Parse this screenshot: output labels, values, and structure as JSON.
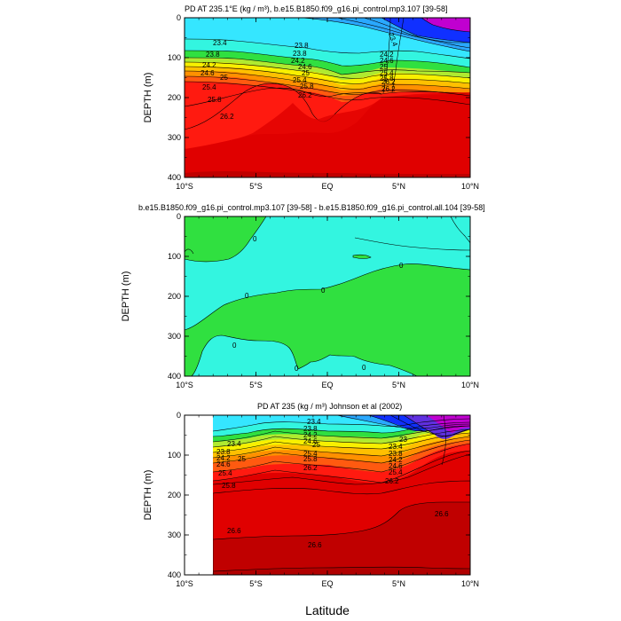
{
  "chart_data": [
    {
      "type": "heatmap",
      "subtype": "filled-contour",
      "title": "PD AT 235.1°E (kg / m³), b.e15.B1850.f09_g16.pi_control.mp3.107 [39-58]",
      "xlabel": "",
      "ylabel": "DEPTH (m)",
      "xlim": [
        -10,
        10
      ],
      "ylim": [
        400,
        0
      ],
      "x_ticks": [
        "10°S",
        "5°S",
        "EQ",
        "5°N",
        "10°N"
      ],
      "y_ticks": [
        "0",
        "100",
        "200",
        "300",
        "400"
      ],
      "contour_labels": [
        "23.4",
        "23.8",
        "23.8",
        "24.2",
        "24.6",
        "25",
        "25.4",
        "25.8",
        "26.2",
        "23.8",
        "24.2",
        "24.6",
        "25",
        "25.4",
        "25.8",
        "26.2",
        "26.2",
        "23.4",
        "24.2",
        "24.6",
        "25",
        "25.4",
        "25.8",
        "26.2"
      ]
    },
    {
      "type": "heatmap",
      "subtype": "filled-contour-difference",
      "title": "b.e15.B1850.f09_g16.pi_control.mp3.107 [39-58] - b.e15.B1850.f09_g16.pi_control.all.104 [39-58]",
      "xlabel": "",
      "ylabel": "DEPTH (m)",
      "xlim": [
        -10,
        10
      ],
      "ylim": [
        400,
        0
      ],
      "x_ticks": [
        "10°S",
        "5°S",
        "EQ",
        "5°N",
        "10°N"
      ],
      "y_ticks": [
        "0",
        "100",
        "200",
        "300",
        "400"
      ],
      "contour_labels": [
        "0",
        "0",
        "0",
        "0",
        "0",
        "0",
        "0"
      ]
    },
    {
      "type": "heatmap",
      "subtype": "filled-contour",
      "title": "PD AT 235 (kg / m³) Johnson et al (2002)",
      "xlabel": "Latitude",
      "ylabel": "DEPTH (m)",
      "xlim": [
        -10,
        10
      ],
      "ylim": [
        400,
        0
      ],
      "data_start_lat": -8,
      "x_ticks": [
        "10°S",
        "5°S",
        "EQ",
        "5°N",
        "10°N"
      ],
      "y_ticks": [
        "0",
        "100",
        "200",
        "300",
        "400"
      ],
      "contour_labels": [
        "23.4",
        "23.8",
        "24.2",
        "24.6",
        "25",
        "25.4",
        "25.8",
        "23.4",
        "23.8",
        "24.2",
        "24.6",
        "25",
        "25.4",
        "25.8",
        "26.2",
        "23",
        "23.4",
        "23.8",
        "24.2",
        "24.6",
        "25.4",
        "26.2",
        "26.6",
        "26.6",
        "26.6"
      ]
    }
  ],
  "palette": {
    "magenta": "#c000d0",
    "blue": "#1030ff",
    "sky": "#2aa8ff",
    "cyan": "#35e6ff",
    "aqua": "#33f5e0",
    "mint": "#3cf08a",
    "green": "#30e040",
    "yellowgreen": "#b0ea30",
    "yellow": "#f8f000",
    "gold": "#ffc000",
    "orange": "#ff9000",
    "orangered": "#ff5a10",
    "red": "#ff1a10",
    "deepred": "#e00000",
    "darkred": "#c00000"
  }
}
